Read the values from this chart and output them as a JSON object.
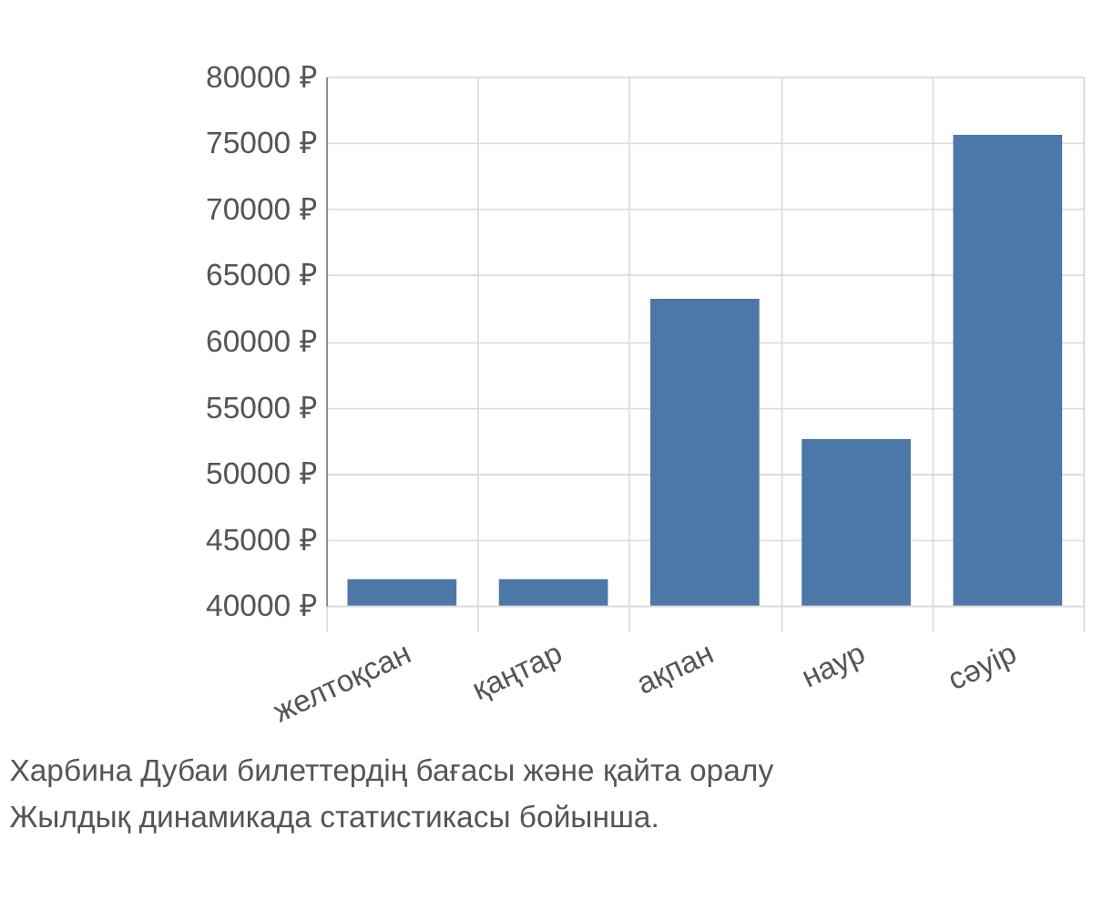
{
  "chart_data": {
    "type": "bar",
    "categories": [
      "желтоқсан",
      "қаңтар",
      "ақпан",
      "наур",
      "сәуір"
    ],
    "values": [
      42000,
      42000,
      63200,
      52600,
      75600
    ],
    "color": "#4c78a8",
    "ylim": [
      40000,
      80000
    ],
    "yticks": [
      {
        "value": 40000,
        "label": "40000 ₽"
      },
      {
        "value": 45000,
        "label": "45000 ₽"
      },
      {
        "value": 50000,
        "label": "50000 ₽"
      },
      {
        "value": 55000,
        "label": "55000 ₽"
      },
      {
        "value": 60000,
        "label": "60000 ₽"
      },
      {
        "value": 65000,
        "label": "65000 ₽"
      },
      {
        "value": 70000,
        "label": "70000 ₽"
      },
      {
        "value": 75000,
        "label": "75000 ₽"
      },
      {
        "value": 80000,
        "label": "80000 ₽"
      }
    ],
    "grid": true,
    "annotations": [
      "Харбина Дубаи билеттердің бағасы және қайта оралу",
      "Жылдық динамикада статистикасы бойынша."
    ]
  }
}
